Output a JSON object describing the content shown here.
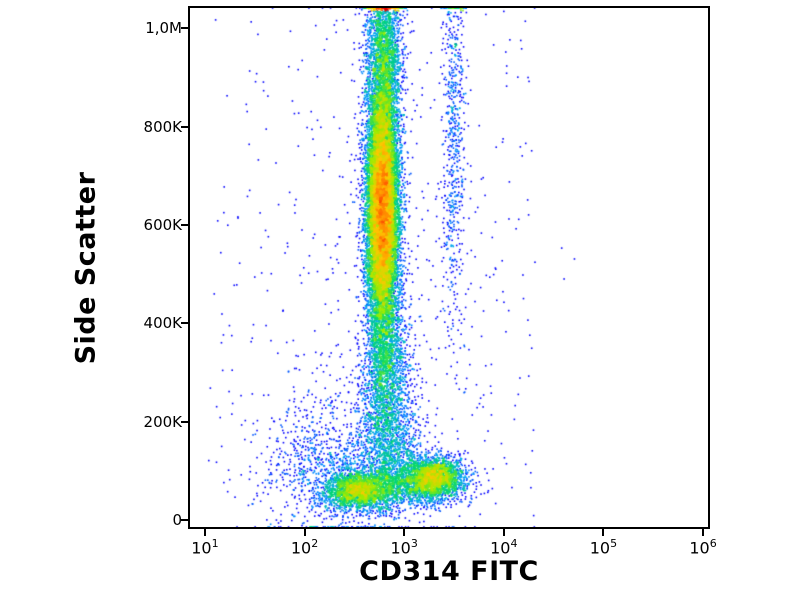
{
  "figure": {
    "background": "#ffffff",
    "frame_color": "#000000"
  },
  "chart_data": {
    "type": "scatter",
    "subtype": "flow_cytometry_density_dot_plot",
    "title": "",
    "xlabel": "CD314 FITC",
    "ylabel": "Side Scatter",
    "x_scale": "log10",
    "xlim_log10": [
      0.85,
      6.05
    ],
    "x_ticks": [
      {
        "log10": 1,
        "label_base": "10",
        "label_exp": "1"
      },
      {
        "log10": 2,
        "label_base": "10",
        "label_exp": "2"
      },
      {
        "log10": 3,
        "label_base": "10",
        "label_exp": "3"
      },
      {
        "log10": 4,
        "label_base": "10",
        "label_exp": "4"
      },
      {
        "log10": 5,
        "label_base": "10",
        "label_exp": "5"
      },
      {
        "log10": 6,
        "label_base": "10",
        "label_exp": "6"
      }
    ],
    "y_scale": "linear",
    "ylim": [
      -14000,
      1041000
    ],
    "y_ticks": [
      {
        "value": 0,
        "label": "0"
      },
      {
        "value": 200000,
        "label": "200K"
      },
      {
        "value": 400000,
        "label": "400K"
      },
      {
        "value": 600000,
        "label": "600K"
      },
      {
        "value": 800000,
        "label": "800K"
      },
      {
        "value": 1000000,
        "label": "1,0M"
      }
    ],
    "grid": false,
    "legend": false,
    "density_colormap": {
      "name": "jet",
      "stops": [
        {
          "t": 0.0,
          "rgb": [
            0,
            0,
            255
          ]
        },
        {
          "t": 0.3,
          "rgb": [
            0,
            160,
            255
          ]
        },
        {
          "t": 0.5,
          "rgb": [
            0,
            215,
            110
          ]
        },
        {
          "t": 0.65,
          "rgb": [
            160,
            235,
            0
          ]
        },
        {
          "t": 0.8,
          "rgb": [
            255,
            200,
            0
          ]
        },
        {
          "t": 0.92,
          "rgb": [
            255,
            90,
            0
          ]
        },
        {
          "t": 1.0,
          "rgb": [
            225,
            0,
            0
          ]
        }
      ]
    },
    "render": {
      "seed": 42,
      "point_size": 1.6,
      "bin_size": 3
    },
    "populations": [
      {
        "name": "granulocyte_stream_core",
        "count": 15000,
        "x_log10_mean": 2.78,
        "x_log10_sd": 0.08,
        "y_mean": 630000,
        "y_sd": 125000
      },
      {
        "name": "granulocyte_stream_top",
        "count": 2800,
        "x_log10_mean": 2.8,
        "x_log10_sd": 0.09,
        "y_mean": 940000,
        "y_sd": 100000
      },
      {
        "name": "monocyte_stream",
        "count": 2000,
        "x_log10_mean": 2.82,
        "x_log10_sd": 0.115,
        "y_mean": 300000,
        "y_sd": 95000
      },
      {
        "name": "stream_junction",
        "count": 900,
        "x_log10_mean": 2.86,
        "x_log10_sd": 0.16,
        "y_mean": 155000,
        "y_sd": 55000
      },
      {
        "name": "cd314_positive_streak",
        "count": 600,
        "x_log10_mean": 3.5,
        "x_log10_sd": 0.055,
        "y_mean": 790000,
        "y_sd": 205000
      },
      {
        "name": "lymphocytes_dim",
        "count": 2200,
        "x_log10_mean": 2.55,
        "x_log10_sd": 0.17,
        "y_mean": 60000,
        "y_sd": 19000
      },
      {
        "name": "lymphocytes_cd314_pos",
        "count": 2400,
        "x_log10_mean": 3.3,
        "x_log10_sd": 0.15,
        "y_mean": 86000,
        "y_sd": 21000
      },
      {
        "name": "bottom_band",
        "count": 1300,
        "x_log10_mean": 2.95,
        "x_log10_sd": 0.3,
        "y_mean": 72000,
        "y_sd": 25000
      },
      {
        "name": "debris",
        "count": 1000,
        "x_log10_mean": 2.25,
        "x_log10_sd": 0.34,
        "y_mean": 110000,
        "y_sd": 72000
      },
      {
        "name": "broad_noise",
        "count": 450,
        "x_log10_mean": 2.9,
        "x_log10_sd": 0.65,
        "y_mean": 480000,
        "y_sd": 320000
      },
      {
        "name": "uniform_noise",
        "count": 260,
        "uniform": true,
        "x_log10_range": [
          1.0,
          4.3
        ],
        "y_range": [
          0,
          1040000
        ]
      }
    ]
  }
}
